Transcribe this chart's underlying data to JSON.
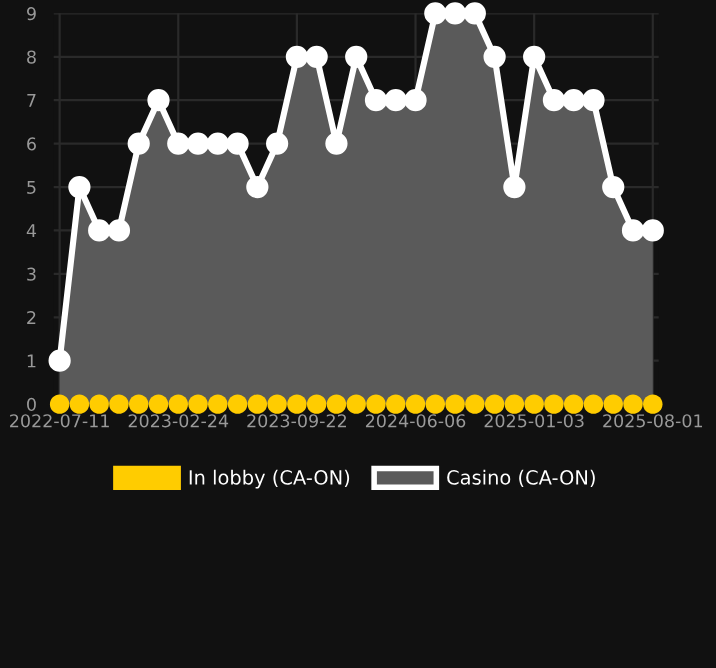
{
  "chart_data": {
    "type": "area",
    "categories": [
      "2022-07-11",
      null,
      null,
      null,
      null,
      null,
      "2023-02-24",
      null,
      null,
      null,
      null,
      null,
      "2023-09-22",
      null,
      null,
      null,
      null,
      null,
      "2024-06-06",
      null,
      null,
      null,
      null,
      null,
      "2025-01-03",
      null,
      null,
      null,
      null,
      null,
      "2025-08-01"
    ],
    "series": [
      {
        "name": "In lobby (CA-ON)",
        "type": "scatter",
        "color": "#ffcc00",
        "values": [
          0,
          0,
          0,
          0,
          0,
          0,
          0,
          0,
          0,
          0,
          0,
          0,
          0,
          0,
          0,
          0,
          0,
          0,
          0,
          0,
          0,
          0,
          0,
          0,
          0,
          0,
          0,
          0,
          0,
          0,
          0
        ]
      },
      {
        "name": "Casino (CA-ON)",
        "color": "#ffffff",
        "values": [
          1,
          5,
          4,
          4,
          6,
          7,
          6,
          6,
          6,
          6,
          5,
          6,
          8,
          8,
          6,
          8,
          7,
          7,
          7,
          9,
          9,
          9,
          8,
          5,
          8,
          7,
          7,
          7,
          5,
          4,
          4
        ]
      }
    ],
    "ylim": [
      0,
      9
    ],
    "yticks": [
      0,
      1,
      2,
      3,
      4,
      5,
      6,
      7,
      8,
      9
    ],
    "grid": true,
    "legend": "bottom",
    "marker": "circle"
  }
}
